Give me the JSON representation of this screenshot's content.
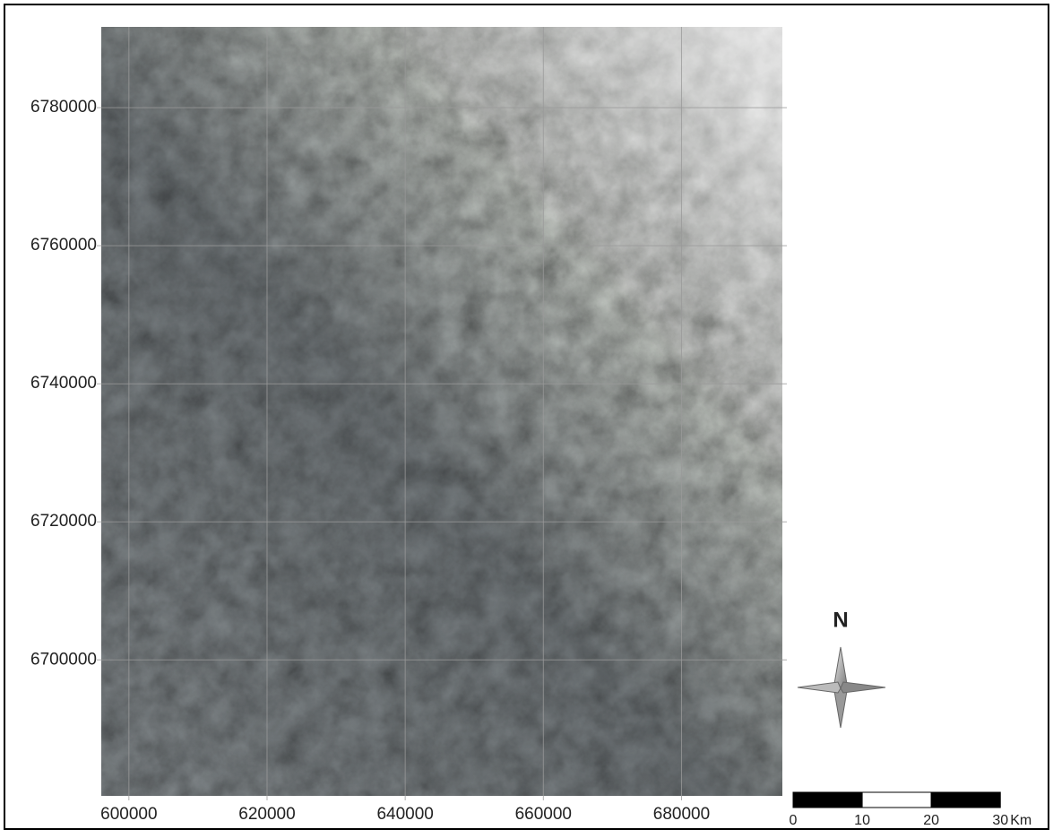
{
  "map": {
    "xlim": [
      596000,
      694600
    ],
    "ylim": [
      6680300,
      6791700
    ],
    "xticks": [
      600000,
      620000,
      640000,
      660000,
      680000
    ],
    "yticks": [
      6780000,
      6760000,
      6740000,
      6720000,
      6700000
    ],
    "grid": true,
    "north_label": "N",
    "scale_bar": {
      "ticks": [
        0,
        10,
        20,
        30
      ],
      "unit": "Km"
    }
  }
}
